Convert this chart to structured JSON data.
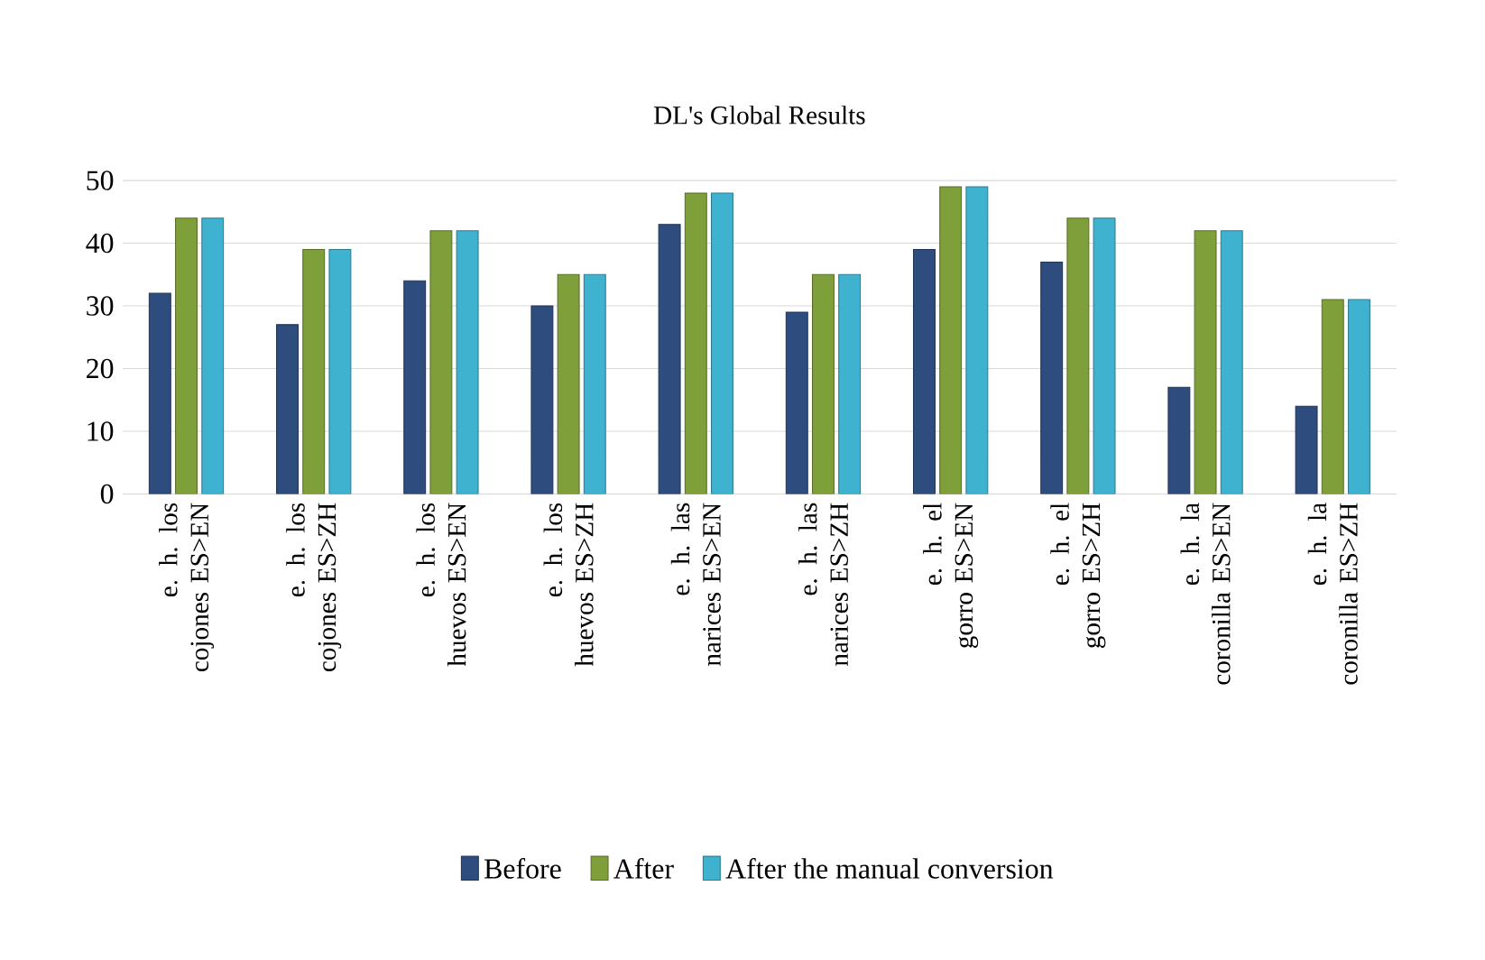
{
  "chart_data": {
    "type": "bar",
    "title": "DL's Global Results",
    "categories": [
      "e. h. los cojones ES>EN",
      "e. h. los cojones ES>ZH",
      "e. h. los huevos ES>EN",
      "e. h.  los huevos ES>ZH",
      "e. h. las narices ES>EN",
      "e. h. las narices ES>ZH",
      "e. h. el gorro ES>EN",
      "e. h. el gorro ES>ZH",
      "e. h. la coronilla ES>EN",
      "e. h. la coronilla ES>ZH"
    ],
    "series": [
      {
        "name": "Before",
        "color": "#2e4d7e",
        "values": [
          32,
          27,
          34,
          30,
          43,
          29,
          39,
          37,
          17,
          14
        ]
      },
      {
        "name": "After",
        "color": "#7f9f3a",
        "values": [
          44,
          39,
          42,
          35,
          48,
          35,
          49,
          44,
          42,
          31
        ]
      },
      {
        "name": "After the manual conversion",
        "color": "#3fb2cf",
        "values": [
          44,
          39,
          42,
          35,
          48,
          35,
          49,
          44,
          42,
          31
        ]
      }
    ],
    "ylim": [
      0,
      50
    ],
    "yticks": [
      0,
      10,
      20,
      30,
      40,
      50
    ],
    "grid": "y",
    "legend": "bottom"
  }
}
